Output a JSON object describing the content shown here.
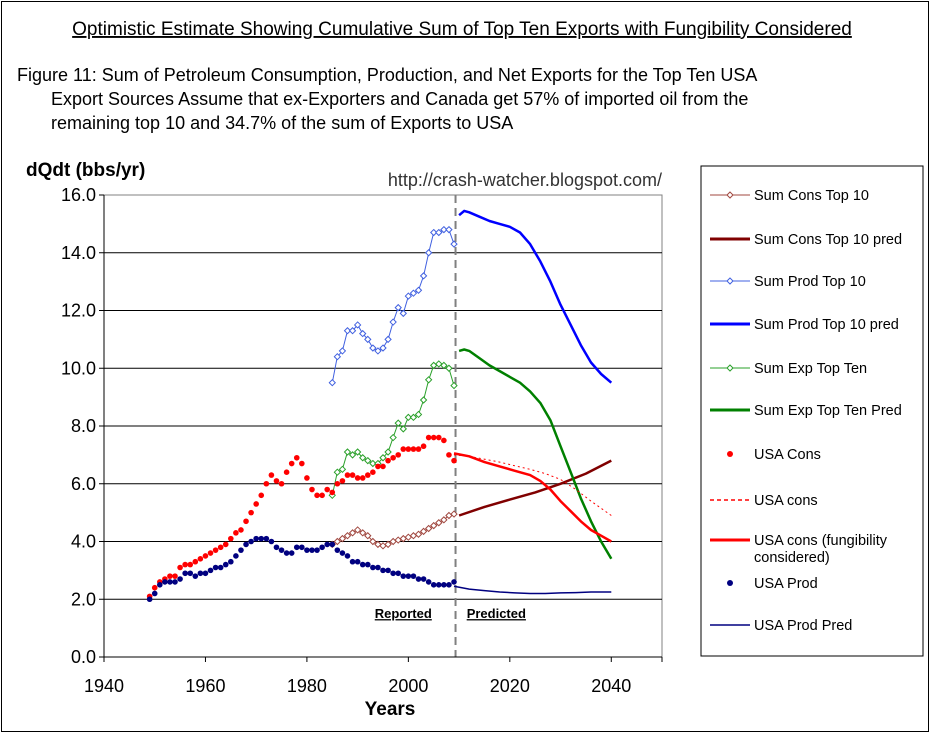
{
  "page_title": "Optimistic  Estimate Showing Cumulative Sum of Top Ten Exports with Fungibility Considered",
  "caption": [
    "Figure 11: Sum of Petroleum Consumption, Production, and Net Exports for the Top Ten USA",
    "Export Sources Assume that ex-Exporters and Canada get 57% of imported oil from the",
    "remaining top 10 and 34.7% of the sum of Exports to USA"
  ],
  "chart_data": {
    "type": "line",
    "title": "Optimistic  Estimate Showing Cumulative Sum of Top Ten Exports with Fungibility Considered",
    "ylabel": "dQdt (bbs/yr)",
    "xlabel": "Years",
    "url_annotation": "http://crash-watcher.blogspot.com/",
    "xlim": [
      1940,
      2050
    ],
    "ylim": [
      0,
      16
    ],
    "x_ticks": [
      "1940",
      "1960",
      "1980",
      "2000",
      "2040",
      "2020"
    ],
    "x_tick_values": [
      1940,
      1960,
      1980,
      2000,
      2040,
      2020
    ],
    "y_ticks": [
      "0.0",
      "2.0",
      "4.0",
      "6.0",
      "8.0",
      "10.0",
      "12.0",
      "14.0",
      "16.0"
    ],
    "y_tick_values": [
      0,
      2,
      4,
      6,
      8,
      10,
      12,
      14,
      16
    ],
    "grid": true,
    "divider_x": 2009.3,
    "region_labels": {
      "reported": "Reported",
      "predicted": "Predicted"
    },
    "region_label_x": {
      "reported": 1999,
      "predicted": 2011.5
    },
    "region_label_y": 1.0,
    "legend_position": "right",
    "series": [
      {
        "name": "Sum Cons Top 10",
        "color": "#a0473f",
        "style": "line-diamond",
        "x": [
          1985,
          1986,
          1987,
          1988,
          1989,
          1990,
          1991,
          1992,
          1993,
          1994,
          1995,
          1996,
          1997,
          1998,
          1999,
          2000,
          2001,
          2002,
          2003,
          2004,
          2005,
          2006,
          2007,
          2008,
          2009
        ],
        "y": [
          3.9,
          4.0,
          4.1,
          4.2,
          4.3,
          4.4,
          4.3,
          4.2,
          4.0,
          3.9,
          3.85,
          3.9,
          4.0,
          4.05,
          4.1,
          4.15,
          4.2,
          4.25,
          4.35,
          4.45,
          4.55,
          4.65,
          4.75,
          4.9,
          4.95
        ]
      },
      {
        "name": "Sum Cons Top 10 pred",
        "color": "#800000",
        "style": "line-thick",
        "x": [
          2010,
          2015,
          2020,
          2025,
          2030,
          2035,
          2040
        ],
        "y": [
          4.9,
          5.2,
          5.45,
          5.7,
          6.0,
          6.35,
          6.8
        ]
      },
      {
        "name": "Sum Prod Top 10",
        "color": "#4060e0",
        "style": "line-diamond",
        "x": [
          1985,
          1986,
          1987,
          1988,
          1989,
          1990,
          1991,
          1992,
          1993,
          1994,
          1995,
          1996,
          1997,
          1998,
          1999,
          2000,
          2001,
          2002,
          2003,
          2004,
          2005,
          2006,
          2007,
          2008,
          2009
        ],
        "y": [
          9.5,
          10.4,
          10.6,
          11.3,
          11.3,
          11.5,
          11.2,
          11.0,
          10.7,
          10.6,
          10.7,
          11.0,
          11.6,
          12.1,
          11.9,
          12.5,
          12.6,
          12.7,
          13.2,
          14.0,
          14.7,
          14.7,
          14.8,
          14.8,
          14.3
        ]
      },
      {
        "name": "Sum Prod Top 10 pred",
        "color": "#0000ff",
        "style": "line-thick",
        "x": [
          2010,
          2011,
          2012,
          2014,
          2016,
          2018,
          2020,
          2022,
          2024,
          2026,
          2028,
          2030,
          2032,
          2034,
          2036,
          2038,
          2040
        ],
        "y": [
          15.3,
          15.45,
          15.4,
          15.25,
          15.1,
          15.0,
          14.9,
          14.7,
          14.3,
          13.7,
          13.0,
          12.2,
          11.5,
          10.8,
          10.2,
          9.8,
          9.5
        ]
      },
      {
        "name": "Sum Exp Top Ten",
        "color": "#2aa02a",
        "style": "line-diamond",
        "x": [
          1985,
          1986,
          1987,
          1988,
          1989,
          1990,
          1991,
          1992,
          1993,
          1994,
          1995,
          1996,
          1997,
          1998,
          1999,
          2000,
          2001,
          2002,
          2003,
          2004,
          2005,
          2006,
          2007,
          2008,
          2009
        ],
        "y": [
          5.6,
          6.4,
          6.5,
          7.1,
          7.0,
          7.1,
          6.9,
          6.8,
          6.7,
          6.7,
          6.9,
          7.1,
          7.6,
          8.1,
          7.9,
          8.3,
          8.3,
          8.4,
          8.9,
          9.6,
          10.1,
          10.15,
          10.1,
          10.0,
          9.4
        ]
      },
      {
        "name": "Sum Exp Top Ten Pred",
        "color": "#008000",
        "style": "line-thick",
        "x": [
          2010,
          2011,
          2012,
          2014,
          2016,
          2018,
          2020,
          2022,
          2024,
          2026,
          2028,
          2030,
          2032,
          2034,
          2036,
          2038,
          2040
        ],
        "y": [
          10.6,
          10.65,
          10.6,
          10.35,
          10.1,
          9.9,
          9.7,
          9.5,
          9.2,
          8.8,
          8.2,
          7.3,
          6.4,
          5.5,
          4.7,
          4.0,
          3.4
        ]
      },
      {
        "name": "USA Cons",
        "color": "#ff0000",
        "style": "dots",
        "x": [
          1949,
          1950,
          1951,
          1952,
          1953,
          1954,
          1955,
          1956,
          1957,
          1958,
          1959,
          1960,
          1961,
          1962,
          1963,
          1964,
          1965,
          1966,
          1967,
          1968,
          1969,
          1970,
          1971,
          1972,
          1973,
          1974,
          1975,
          1976,
          1977,
          1978,
          1979,
          1980,
          1981,
          1982,
          1983,
          1984,
          1985,
          1986,
          1987,
          1988,
          1989,
          1990,
          1991,
          1992,
          1993,
          1994,
          1995,
          1996,
          1997,
          1998,
          1999,
          2000,
          2001,
          2002,
          2003,
          2004,
          2005,
          2006,
          2007,
          2008,
          2009
        ],
        "y": [
          2.1,
          2.4,
          2.6,
          2.7,
          2.8,
          2.8,
          3.1,
          3.2,
          3.2,
          3.3,
          3.4,
          3.5,
          3.6,
          3.7,
          3.8,
          3.9,
          4.1,
          4.3,
          4.4,
          4.7,
          5.0,
          5.3,
          5.6,
          6.0,
          6.3,
          6.1,
          6.0,
          6.4,
          6.7,
          6.9,
          6.7,
          6.2,
          5.8,
          5.6,
          5.6,
          5.8,
          5.7,
          6.0,
          6.1,
          6.3,
          6.3,
          6.2,
          6.2,
          6.3,
          6.4,
          6.6,
          6.6,
          6.8,
          6.9,
          7.0,
          7.2,
          7.2,
          7.2,
          7.2,
          7.3,
          7.6,
          7.6,
          7.6,
          7.5,
          7.0,
          6.8
        ]
      },
      {
        "name": "USA cons",
        "color": "#ff0000",
        "style": "dotted",
        "x": [
          2009,
          2012,
          2015,
          2018,
          2021,
          2024,
          2027,
          2030,
          2033,
          2036,
          2040
        ],
        "y": [
          7.0,
          6.95,
          6.85,
          6.75,
          6.62,
          6.5,
          6.35,
          6.15,
          5.8,
          5.4,
          4.9
        ]
      },
      {
        "name": "USA cons (fungibility considered)",
        "color": "#ff0000",
        "style": "line-thick",
        "x": [
          2009,
          2012,
          2015,
          2018,
          2021,
          2024,
          2026,
          2028,
          2030,
          2032,
          2034,
          2036,
          2038,
          2040
        ],
        "y": [
          7.05,
          6.95,
          6.75,
          6.6,
          6.45,
          6.3,
          6.1,
          5.8,
          5.4,
          5.05,
          4.7,
          4.4,
          4.2,
          4.0
        ]
      },
      {
        "name": "USA Prod",
        "color": "#000080",
        "style": "dots",
        "x": [
          1949,
          1950,
          1951,
          1952,
          1953,
          1954,
          1955,
          1956,
          1957,
          1958,
          1959,
          1960,
          1961,
          1962,
          1963,
          1964,
          1965,
          1966,
          1967,
          1968,
          1969,
          1970,
          1971,
          1972,
          1973,
          1974,
          1975,
          1976,
          1977,
          1978,
          1979,
          1980,
          1981,
          1982,
          1983,
          1984,
          1985,
          1986,
          1987,
          1988,
          1989,
          1990,
          1991,
          1992,
          1993,
          1994,
          1995,
          1996,
          1997,
          1998,
          1999,
          2000,
          2001,
          2002,
          2003,
          2004,
          2005,
          2006,
          2007,
          2008,
          2009
        ],
        "y": [
          2.0,
          2.2,
          2.5,
          2.6,
          2.6,
          2.6,
          2.7,
          2.9,
          2.9,
          2.8,
          2.9,
          2.9,
          3.0,
          3.1,
          3.1,
          3.2,
          3.3,
          3.5,
          3.7,
          3.9,
          4.0,
          4.1,
          4.1,
          4.1,
          4.0,
          3.8,
          3.7,
          3.6,
          3.6,
          3.8,
          3.8,
          3.7,
          3.7,
          3.7,
          3.8,
          3.9,
          3.9,
          3.7,
          3.6,
          3.5,
          3.3,
          3.3,
          3.2,
          3.2,
          3.1,
          3.1,
          3.0,
          3.0,
          2.9,
          2.9,
          2.8,
          2.8,
          2.8,
          2.7,
          2.7,
          2.6,
          2.5,
          2.5,
          2.5,
          2.5,
          2.6
        ]
      },
      {
        "name": "USA Prod Pred",
        "color": "#000080",
        "style": "line-thin",
        "x": [
          2009,
          2012,
          2015,
          2018,
          2021,
          2024,
          2027,
          2030,
          2033,
          2036,
          2040
        ],
        "y": [
          2.45,
          2.35,
          2.3,
          2.25,
          2.22,
          2.2,
          2.2,
          2.22,
          2.23,
          2.25,
          2.25
        ]
      }
    ]
  }
}
